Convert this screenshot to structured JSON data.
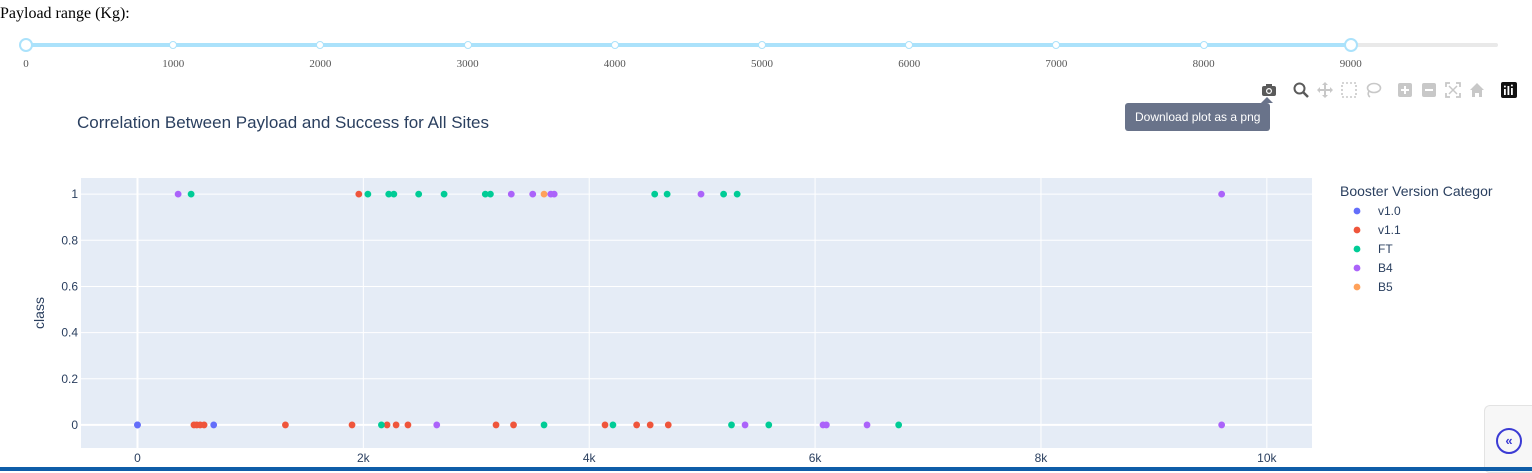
{
  "payload_label": "Payload range (Kg):",
  "slider": {
    "min": 0,
    "max": 10000,
    "value": [
      0,
      9000
    ],
    "marks": [
      "0",
      "1000",
      "2000",
      "3000",
      "4000",
      "5000",
      "6000",
      "7000",
      "8000",
      "9000"
    ],
    "track_color": "#abe2fb",
    "rail_color": "#e9e9e9"
  },
  "modebar": {
    "buttons": [
      {
        "name": "camera-icon"
      },
      {
        "name": "zoom-icon"
      },
      {
        "name": "pan-icon"
      },
      {
        "name": "box-select-icon"
      },
      {
        "name": "lasso-select-icon"
      },
      {
        "name": "zoom-in-icon"
      },
      {
        "name": "zoom-out-icon"
      },
      {
        "name": "autoscale-icon"
      },
      {
        "name": "reset-axes-icon"
      },
      {
        "name": "plotly-logo-icon"
      }
    ],
    "tooltip": "Download plot as a png"
  },
  "chart_data": {
    "type": "scatter",
    "title": "Correlation Between Payload and Success for All Sites",
    "xlabel": "",
    "ylabel": "class",
    "xlim": [
      -500,
      10400
    ],
    "ylim": [
      -0.1,
      1.07
    ],
    "x_ticks": [
      0,
      2000,
      4000,
      6000,
      8000,
      10000
    ],
    "x_tick_labels": [
      "0",
      "2k",
      "4k",
      "6k",
      "8k",
      "10k"
    ],
    "y_ticks": [
      0,
      0.2,
      0.4,
      0.6,
      0.8,
      1
    ],
    "y_tick_labels": [
      "0",
      "0.2",
      "0.4",
      "0.6",
      "0.8",
      "1"
    ],
    "grid": true,
    "plot_background": "#e5ecf6",
    "legend": {
      "title": "Booster Version Categor",
      "position": "right"
    },
    "series": [
      {
        "name": "v1.0",
        "color": "#636efa",
        "x": [
          0,
          0,
          675
        ],
        "y": [
          0,
          0,
          0
        ]
      },
      {
        "name": "v1.1",
        "color": "#ef553b",
        "x": [
          500,
          525,
          555,
          590,
          1310,
          1900,
          1960,
          2210,
          2290,
          2395,
          3175,
          3330,
          4140,
          4420,
          4540,
          4700
        ],
        "y": [
          0,
          0,
          0,
          0,
          0,
          0,
          1,
          0,
          0,
          0,
          0,
          0,
          0,
          0,
          0,
          0
        ]
      },
      {
        "name": "FT",
        "color": "#00cc96",
        "x": [
          475,
          2040,
          2160,
          2225,
          2270,
          2490,
          2715,
          3080,
          3125,
          3600,
          4210,
          4580,
          4690,
          5260,
          5190,
          5310,
          5590,
          6740
        ],
        "y": [
          1,
          1,
          0,
          1,
          1,
          1,
          1,
          1,
          1,
          0,
          0,
          1,
          1,
          0,
          1,
          1,
          0,
          0
        ]
      },
      {
        "name": "B4",
        "color": "#ab63fa",
        "x": [
          360,
          2650,
          3310,
          3500,
          3660,
          3690,
          4990,
          5380,
          6070,
          6100,
          6460,
          9600,
          9600
        ],
        "y": [
          1,
          0,
          1,
          1,
          1,
          1,
          1,
          0,
          0,
          0,
          0,
          1,
          0
        ]
      },
      {
        "name": "B5",
        "color": "#ffa15a",
        "x": [
          3600
        ],
        "y": [
          1
        ]
      }
    ]
  },
  "side_tab": {
    "icon": "«"
  }
}
